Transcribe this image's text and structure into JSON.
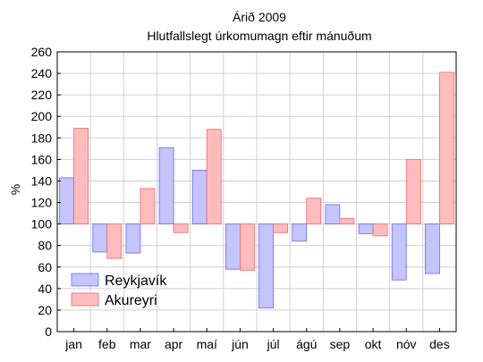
{
  "chart_data": {
    "type": "bar",
    "title": "Árið 2009",
    "subtitle": "Hlutfallslegt úrkomumagn eftir mánuðum",
    "xlabel": "",
    "ylabel": "%",
    "ylim": [
      0,
      260
    ],
    "yticks": [
      0,
      20,
      40,
      60,
      80,
      100,
      120,
      140,
      160,
      180,
      200,
      220,
      240,
      260
    ],
    "baseline": 100,
    "grid": true,
    "legend_position": "bottom-left",
    "categories": [
      "jan",
      "feb",
      "mar",
      "apr",
      "maí",
      "jún",
      "júl",
      "ágú",
      "sep",
      "okt",
      "nóv",
      "des"
    ],
    "series": [
      {
        "name": "Reykjavík",
        "fill": "#c4c4ff",
        "stroke": "#6a6aee",
        "values": [
          143,
          74,
          73,
          171,
          150,
          58,
          22,
          84,
          118,
          91,
          48,
          54
        ]
      },
      {
        "name": "Akureyri",
        "fill": "#ffbcbc",
        "stroke": "#ee6a6a",
        "values": [
          189,
          68,
          133,
          92,
          188,
          57,
          92,
          124,
          105,
          89,
          160,
          241
        ]
      }
    ]
  }
}
